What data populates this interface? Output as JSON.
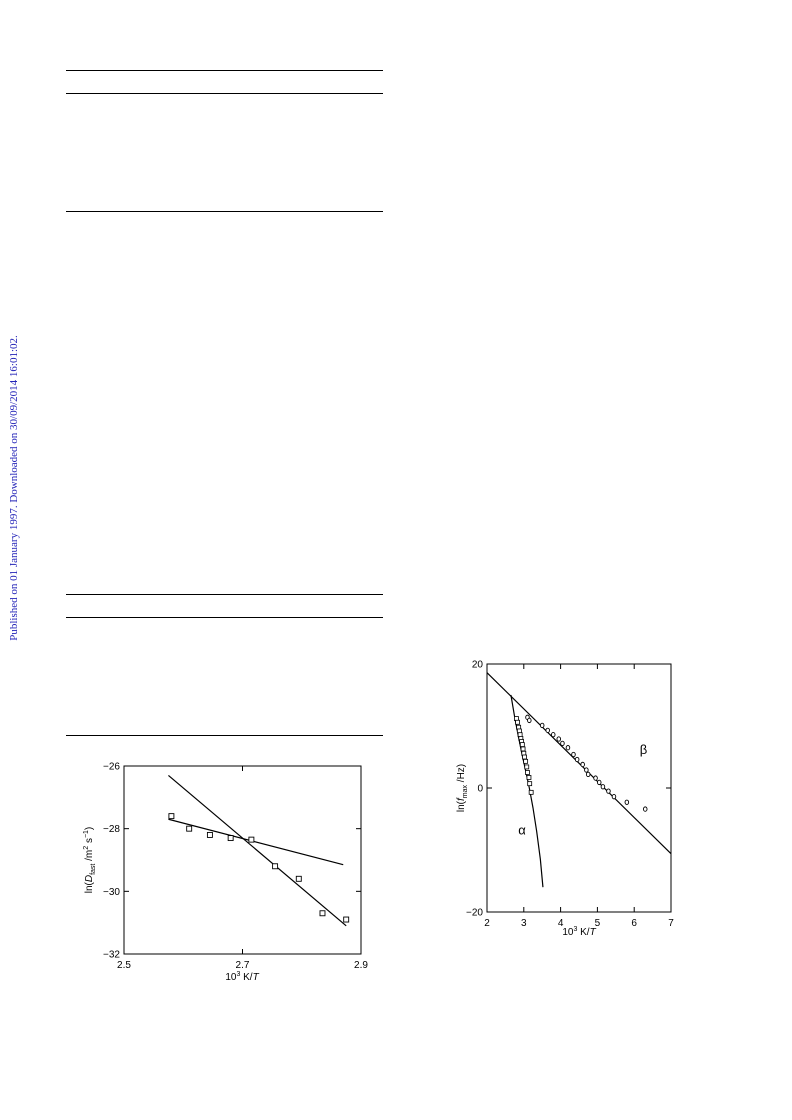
{
  "watermark": {
    "text": "Published on 01 January 1997. Downloaded on 30/09/2014 16:01:02.",
    "color": "#2424b8"
  },
  "chart_data": [
    {
      "type": "scatter",
      "xlabel": "10³ K/T",
      "ylabel": "ln(D_fast /m² s⁻¹)",
      "xlim": [
        2.5,
        2.9
      ],
      "ylim": [
        -32,
        -26
      ],
      "x_ticks": [
        2.5,
        2.7,
        2.9
      ],
      "y_ticks": [
        -26,
        -28,
        -30,
        -32
      ],
      "marker": "open-square",
      "points": [
        [
          2.58,
          -27.6
        ],
        [
          2.61,
          -28.0
        ],
        [
          2.645,
          -28.2
        ],
        [
          2.68,
          -28.3
        ],
        [
          2.715,
          -28.35
        ],
        [
          2.755,
          -29.2
        ],
        [
          2.795,
          -29.6
        ],
        [
          2.835,
          -30.7
        ],
        [
          2.875,
          -30.9
        ]
      ],
      "lines": [
        {
          "x": [
            2.575,
            2.87
          ],
          "y": [
            -27.7,
            -29.15
          ]
        },
        {
          "x": [
            2.575,
            2.875
          ],
          "y": [
            -26.3,
            -31.1
          ]
        }
      ]
    },
    {
      "type": "scatter",
      "xlabel": "10³ K/T",
      "ylabel": "ln(f_max /Hz)",
      "xlim": [
        2,
        7
      ],
      "ylim": [
        -20,
        20
      ],
      "x_ticks": [
        2,
        3,
        4,
        5,
        6,
        7
      ],
      "y_ticks": [
        20,
        0,
        -20
      ],
      "labels": [
        {
          "text": "α",
          "x": 2.85,
          "y": -7.5
        },
        {
          "text": "β",
          "x": 6.15,
          "y": 5.5
        }
      ],
      "alpha_points": [
        [
          2.8,
          11.2
        ],
        [
          2.83,
          10.6
        ],
        [
          2.86,
          9.8
        ],
        [
          2.88,
          9.2
        ],
        [
          2.9,
          8.6
        ],
        [
          2.92,
          8.0
        ],
        [
          2.94,
          7.5
        ],
        [
          2.96,
          7.0
        ],
        [
          2.98,
          6.3
        ],
        [
          3.0,
          5.6
        ],
        [
          3.02,
          5.0
        ],
        [
          3.05,
          4.3
        ],
        [
          3.08,
          3.4
        ],
        [
          3.1,
          2.5
        ],
        [
          3.14,
          1.7
        ],
        [
          3.16,
          0.7
        ],
        [
          3.2,
          -0.7
        ]
      ],
      "beta_points": [
        [
          3.1,
          11.4
        ],
        [
          3.15,
          10.9
        ],
        [
          3.5,
          10.1
        ],
        [
          3.65,
          9.3
        ],
        [
          3.8,
          8.6
        ],
        [
          3.95,
          7.9
        ],
        [
          4.05,
          7.2
        ],
        [
          4.2,
          6.5
        ],
        [
          4.35,
          5.4
        ],
        [
          4.45,
          4.6
        ],
        [
          4.6,
          3.8
        ],
        [
          4.7,
          2.9
        ],
        [
          4.75,
          2.2
        ],
        [
          4.95,
          1.6
        ],
        [
          5.05,
          0.9
        ],
        [
          5.15,
          0.2
        ],
        [
          5.3,
          -0.5
        ],
        [
          5.45,
          -1.4
        ],
        [
          5.8,
          -2.3
        ],
        [
          6.3,
          -3.4
        ]
      ],
      "lines": [
        {
          "name_ref": "beta-fit",
          "x": [
            2.0,
            7.0
          ],
          "y": [
            18.6,
            -10.6
          ]
        },
        {
          "name_ref": "alpha-fit",
          "x": [
            2.65,
            2.75,
            2.85,
            2.95,
            3.05,
            3.15,
            3.25,
            3.35,
            3.45,
            3.52
          ],
          "y": [
            15.0,
            11.5,
            8.4,
            5.5,
            2.8,
            0.0,
            -3.2,
            -7.0,
            -11.5,
            -16.0
          ]
        }
      ]
    }
  ]
}
